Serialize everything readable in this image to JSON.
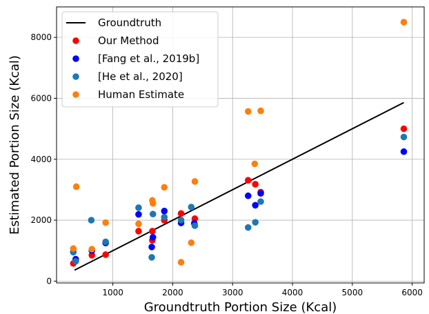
{
  "chart_data": {
    "type": "scatter",
    "xlabel": "Groundtruth Portion Size (Kcal)",
    "ylabel": "Estimated Portion Size (Kcal)",
    "xlim": [
      60,
      6200
    ],
    "ylim": [
      -60,
      9000
    ],
    "xticks": [
      1000,
      2000,
      3000,
      4000,
      5000,
      6000
    ],
    "yticks": [
      0,
      2000,
      4000,
      6000,
      8000
    ],
    "grid": true,
    "legend_position": "top-left",
    "line": {
      "name": "Groundtruth",
      "color": "#000000",
      "x": [
        360,
        5860
      ],
      "y": [
        360,
        5860
      ]
    },
    "series": [
      {
        "name": "Our Method",
        "color": "#ff0000",
        "points": [
          [
            340,
            580
          ],
          [
            380,
            700
          ],
          [
            650,
            850
          ],
          [
            880,
            870
          ],
          [
            1430,
            1640
          ],
          [
            1660,
            1340
          ],
          [
            1660,
            1640
          ],
          [
            1860,
            2000
          ],
          [
            2140,
            2220
          ],
          [
            2370,
            2050
          ],
          [
            3260,
            3310
          ],
          [
            3380,
            3180
          ],
          [
            3470,
            2920
          ],
          [
            5860,
            5000
          ]
        ]
      },
      {
        "name": "[Fang et al., 2019b]",
        "color": "#0000ff",
        "points": [
          [
            340,
            960
          ],
          [
            380,
            720
          ],
          [
            650,
            1000
          ],
          [
            880,
            1250
          ],
          [
            1430,
            2190
          ],
          [
            1650,
            1120
          ],
          [
            1670,
            1440
          ],
          [
            1860,
            2300
          ],
          [
            2140,
            1910
          ],
          [
            2360,
            1900
          ],
          [
            3260,
            2800
          ],
          [
            3380,
            2490
          ],
          [
            3470,
            2880
          ],
          [
            5860,
            4250
          ]
        ]
      },
      {
        "name": "[He et al., 2020]",
        "color": "#1f77b4",
        "points": [
          [
            340,
            950
          ],
          [
            380,
            650
          ],
          [
            640,
            2000
          ],
          [
            880,
            1290
          ],
          [
            1430,
            2410
          ],
          [
            1650,
            780
          ],
          [
            1670,
            2200
          ],
          [
            1860,
            2100
          ],
          [
            2140,
            2000
          ],
          [
            2310,
            2430
          ],
          [
            2370,
            1820
          ],
          [
            3260,
            1760
          ],
          [
            3380,
            1930
          ],
          [
            3470,
            2610
          ],
          [
            5860,
            4730
          ]
        ]
      },
      {
        "name": "Human Estimate",
        "color": "#ff7f0e",
        "points": [
          [
            340,
            1070
          ],
          [
            390,
            3100
          ],
          [
            650,
            1050
          ],
          [
            880,
            1920
          ],
          [
            1430,
            1880
          ],
          [
            1660,
            2650
          ],
          [
            1670,
            2550
          ],
          [
            1860,
            3080
          ],
          [
            2140,
            620
          ],
          [
            2310,
            1260
          ],
          [
            2370,
            3270
          ],
          [
            3260,
            5570
          ],
          [
            3370,
            3850
          ],
          [
            3470,
            5590
          ],
          [
            5860,
            8500
          ]
        ]
      }
    ]
  }
}
